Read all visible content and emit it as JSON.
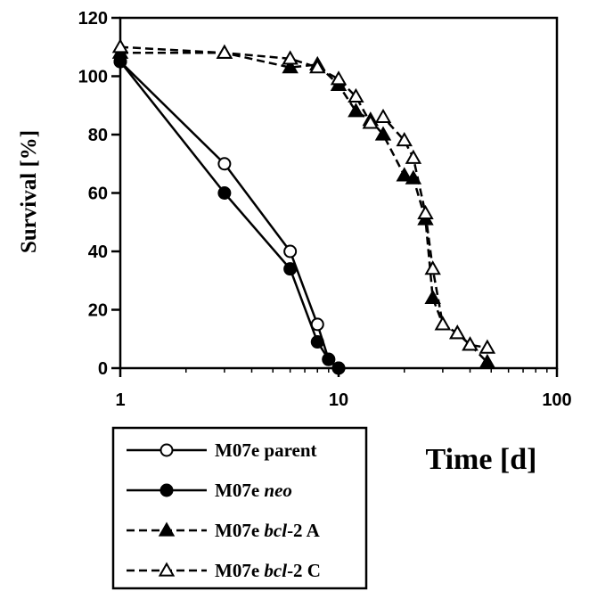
{
  "chart_data": {
    "type": "line",
    "xlabel": "Time [d]",
    "ylabel": "Survival [%]",
    "x_scale": "log",
    "xlim": [
      1,
      100
    ],
    "ylim": [
      0,
      120
    ],
    "x_ticks": [
      "1",
      "10",
      "100"
    ],
    "y_ticks": [
      "0",
      "20",
      "40",
      "60",
      "80",
      "100",
      "120"
    ],
    "legend_position": "below-left",
    "series": [
      {
        "name": "M07e parent",
        "name_parts": [
          [
            "M07e parent",
            "normal"
          ]
        ],
        "marker": "circle-open",
        "line": "solid",
        "color": "#000000",
        "x": [
          1,
          3,
          6,
          8,
          9,
          10
        ],
        "y": [
          105,
          70,
          40,
          15,
          3,
          0
        ]
      },
      {
        "name": "M07e neo",
        "name_parts": [
          [
            "M07e ",
            "normal"
          ],
          [
            "neo",
            "italic"
          ]
        ],
        "marker": "circle-filled",
        "line": "solid",
        "color": "#000000",
        "x": [
          1,
          3,
          6,
          8,
          9,
          10
        ],
        "y": [
          105,
          60,
          34,
          9,
          3,
          0
        ]
      },
      {
        "name": "M07e bcl-2 A",
        "name_parts": [
          [
            "M07e ",
            "normal"
          ],
          [
            "bcl",
            "italic"
          ],
          [
            "-2 A",
            "normal"
          ]
        ],
        "marker": "triangle-filled",
        "line": "dashed",
        "color": "#000000",
        "x": [
          1,
          3,
          6,
          8,
          10,
          12,
          14,
          16,
          20,
          22,
          25,
          27,
          30,
          35,
          40,
          48
        ],
        "y": [
          108,
          108,
          103,
          104,
          97,
          88,
          85,
          80,
          66,
          65,
          51,
          24,
          15,
          12,
          8,
          2
        ]
      },
      {
        "name": "M07e bcl-2 C",
        "name_parts": [
          [
            "M07e ",
            "normal"
          ],
          [
            "bcl",
            "italic"
          ],
          [
            "-2 C",
            "normal"
          ]
        ],
        "marker": "triangle-open",
        "line": "dashed",
        "color": "#000000",
        "x": [
          1,
          3,
          6,
          8,
          10,
          12,
          14,
          16,
          20,
          22,
          25,
          27,
          30,
          35,
          40,
          48
        ],
        "y": [
          110,
          108,
          106,
          103,
          99,
          93,
          84,
          86,
          78,
          72,
          53,
          34,
          15,
          12,
          8,
          7
        ]
      }
    ]
  }
}
